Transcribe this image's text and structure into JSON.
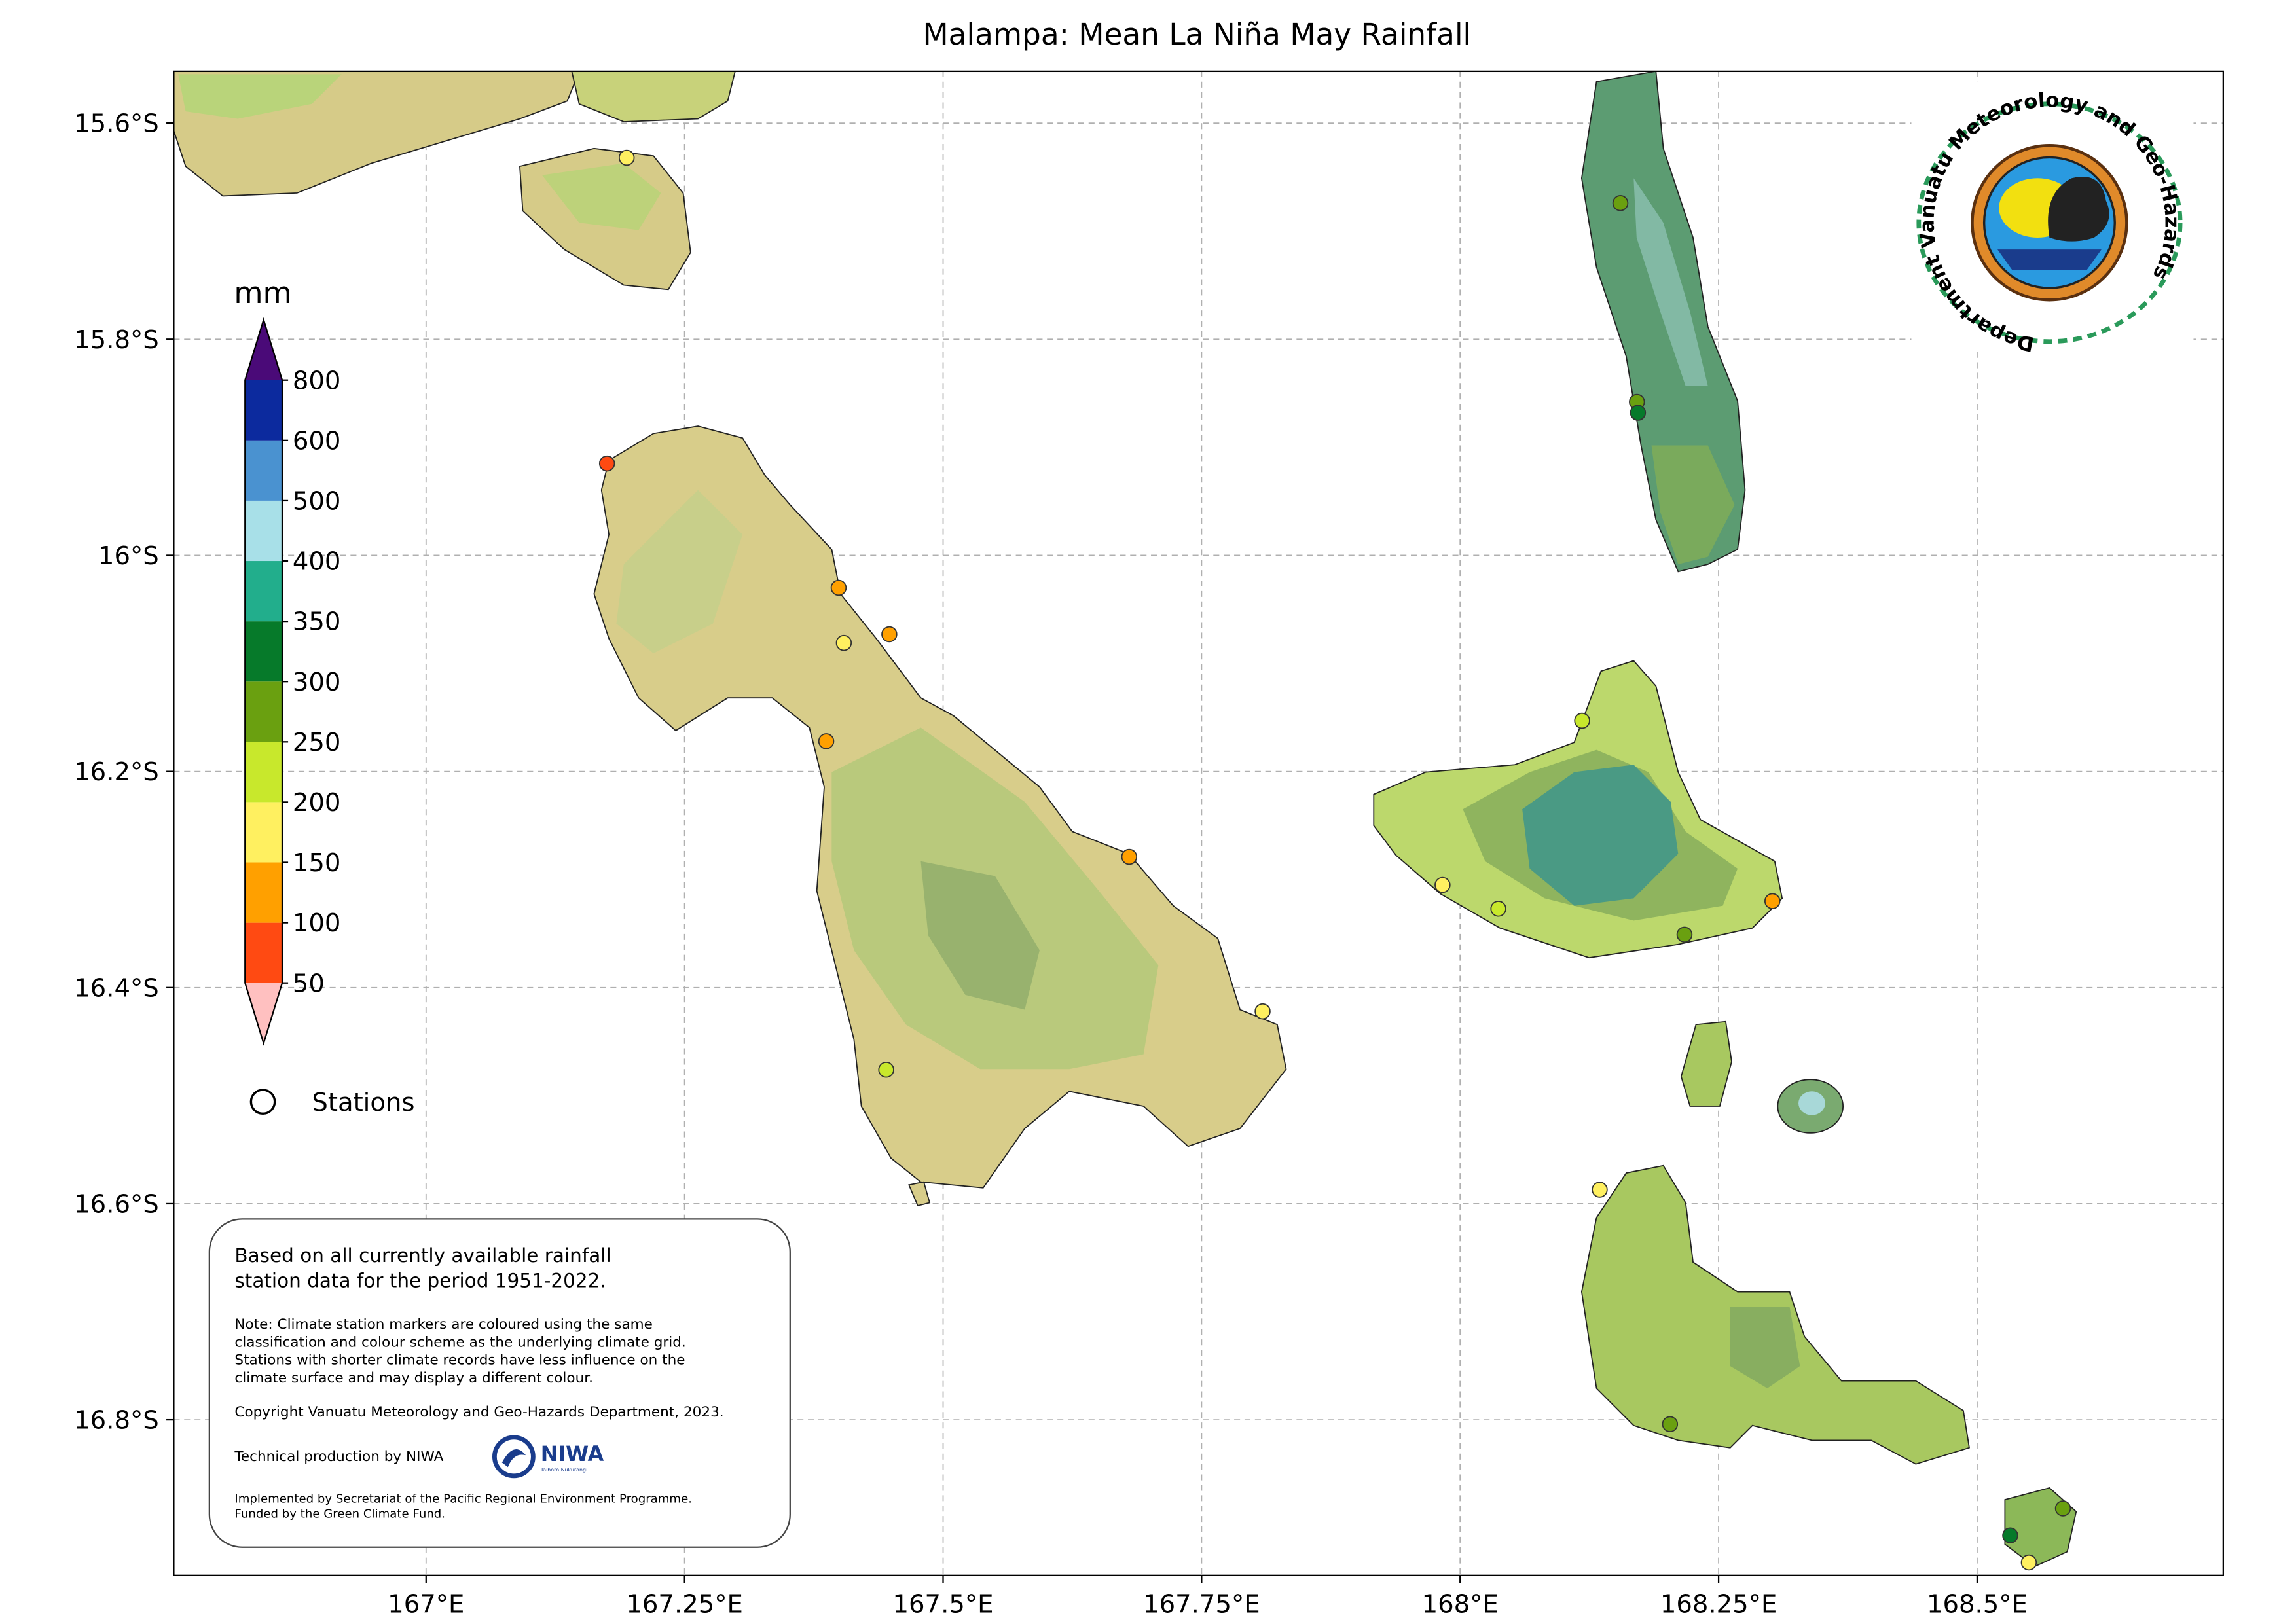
{
  "chart_data": {
    "type": "map",
    "title": "Malampa: Mean La Niña May Rainfall",
    "xlim": [
      166.756,
      168.738
    ],
    "ylim": [
      -16.944,
      -15.552
    ],
    "xticks": [
      {
        "value": 167,
        "label": "167°E"
      },
      {
        "value": 167.25,
        "label": "167.25°E"
      },
      {
        "value": 167.5,
        "label": "167.5°E"
      },
      {
        "value": 167.75,
        "label": "167.75°E"
      },
      {
        "value": 168,
        "label": "168°E"
      },
      {
        "value": 168.25,
        "label": "168.25°E"
      },
      {
        "value": 168.5,
        "label": "168.5°E"
      }
    ],
    "yticks": [
      {
        "value": -15.6,
        "label": "15.6°S"
      },
      {
        "value": -15.8,
        "label": "15.8°S"
      },
      {
        "value": -16,
        "label": "16°S"
      },
      {
        "value": -16.2,
        "label": "16.2°S"
      },
      {
        "value": -16.4,
        "label": "16.4°S"
      },
      {
        "value": -16.6,
        "label": "16.6°S"
      },
      {
        "value": -16.8,
        "label": "16.8°S"
      }
    ],
    "grid": true,
    "colorbar": {
      "label": "mm",
      "levels": [
        50,
        100,
        150,
        200,
        250,
        300,
        350,
        400,
        500,
        600,
        800
      ],
      "colors": [
        "#ffc0c0",
        "#ff4a12",
        "#ffa000",
        "#fff060",
        "#c8e82c",
        "#6aa010",
        "#067a2a",
        "#22ae8c",
        "#a8e0e8",
        "#4a92d0",
        "#0c2a9e",
        "#4a0a78"
      ]
    },
    "stations": {
      "name": "Stations",
      "lon": [
        167.194,
        167.175,
        167.399,
        167.404,
        167.448,
        167.387,
        167.68,
        167.809,
        167.445,
        168.155,
        168.171,
        168.172,
        168.118,
        167.983,
        168.037,
        168.217,
        168.302,
        168.135,
        168.203,
        168.532,
        168.583,
        168.55
      ],
      "lat": [
        -15.632,
        -15.915,
        -16.03,
        -16.081,
        -16.073,
        -16.172,
        -16.279,
        -16.422,
        -16.476,
        -15.674,
        -15.858,
        -15.868,
        -16.153,
        -16.305,
        -16.327,
        -16.351,
        -16.32,
        -16.587,
        -16.804,
        -16.907,
        -16.882,
        -16.932
      ],
      "values": [
        175,
        75,
        125,
        175,
        125,
        125,
        125,
        175,
        225,
        275,
        275,
        325,
        225,
        175,
        225,
        275,
        125,
        175,
        275,
        325,
        275,
        175
      ]
    }
  },
  "info_box": {
    "lines": [
      "Based on all currently available rainfall",
      "station data for the period 1951-2022."
    ],
    "note": [
      "Note: Climate station markers are coloured using the same",
      "classification and colour scheme as the underlying climate grid.",
      "Stations with shorter climate records have less influence on the",
      "climate surface and may display a different colour."
    ],
    "copyright": "Copyright Vanuatu Meteorology and Geo-Hazards Department, 2023.",
    "technical": "Technical production by NIWA",
    "implemented": [
      "Implemented by Secretariat of the Pacific Regional Environment Programme.",
      "Funded by the Green Climate Fund."
    ]
  },
  "logo": {
    "text": "Department Vanuatu Meteorology and Geo-Hazards"
  },
  "niwa_logo": {
    "name": "NIWA",
    "tagline": "Taihoro Nukurangi"
  }
}
